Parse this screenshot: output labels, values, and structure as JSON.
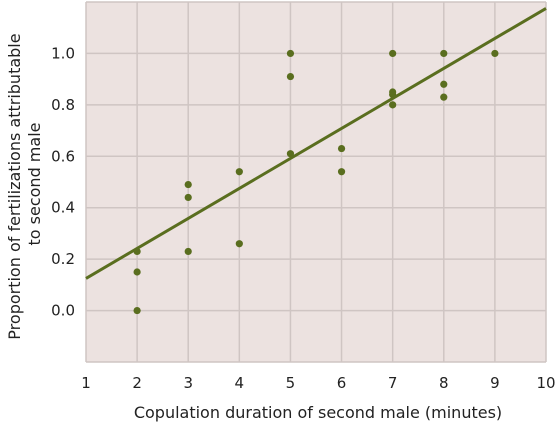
{
  "chart_data": {
    "type": "scatter",
    "title": "",
    "xlabel": "Copulation duration of second male (minutes)",
    "ylabel_lines": [
      "Proportion of fertilizations attributable",
      "to second male"
    ],
    "xlim": [
      1,
      10
    ],
    "ylim": [
      -0.2,
      1.2
    ],
    "x_ticks": [
      "1",
      "2",
      "3",
      "4",
      "5",
      "6",
      "7",
      "8",
      "9",
      "10"
    ],
    "y_ticks": [
      "0.0",
      "0.2",
      "0.4",
      "0.6",
      "0.8",
      "1.0"
    ],
    "grid": true,
    "points": [
      {
        "x": 2,
        "y": 0.0
      },
      {
        "x": 2,
        "y": 0.15
      },
      {
        "x": 2,
        "y": 0.23
      },
      {
        "x": 3,
        "y": 0.23
      },
      {
        "x": 3,
        "y": 0.44
      },
      {
        "x": 3,
        "y": 0.49
      },
      {
        "x": 4,
        "y": 0.26
      },
      {
        "x": 4,
        "y": 0.54
      },
      {
        "x": 5,
        "y": 0.61
      },
      {
        "x": 5,
        "y": 0.91
      },
      {
        "x": 5,
        "y": 1.0
      },
      {
        "x": 6,
        "y": 0.54
      },
      {
        "x": 6,
        "y": 0.63
      },
      {
        "x": 7,
        "y": 0.8
      },
      {
        "x": 7,
        "y": 0.84
      },
      {
        "x": 7,
        "y": 0.85
      },
      {
        "x": 7,
        "y": 1.0
      },
      {
        "x": 8,
        "y": 0.83
      },
      {
        "x": 8,
        "y": 0.88
      },
      {
        "x": 8,
        "y": 1.0
      },
      {
        "x": 9,
        "y": 1.0
      }
    ],
    "trendline": {
      "x1": 1,
      "y1": 0.125,
      "x2": 10,
      "y2": 1.175
    },
    "colors": {
      "background": "#ece2e0",
      "grid": "#cfc5c3",
      "point": "#5a6e1f",
      "trendline": "#5a6e1f"
    }
  }
}
